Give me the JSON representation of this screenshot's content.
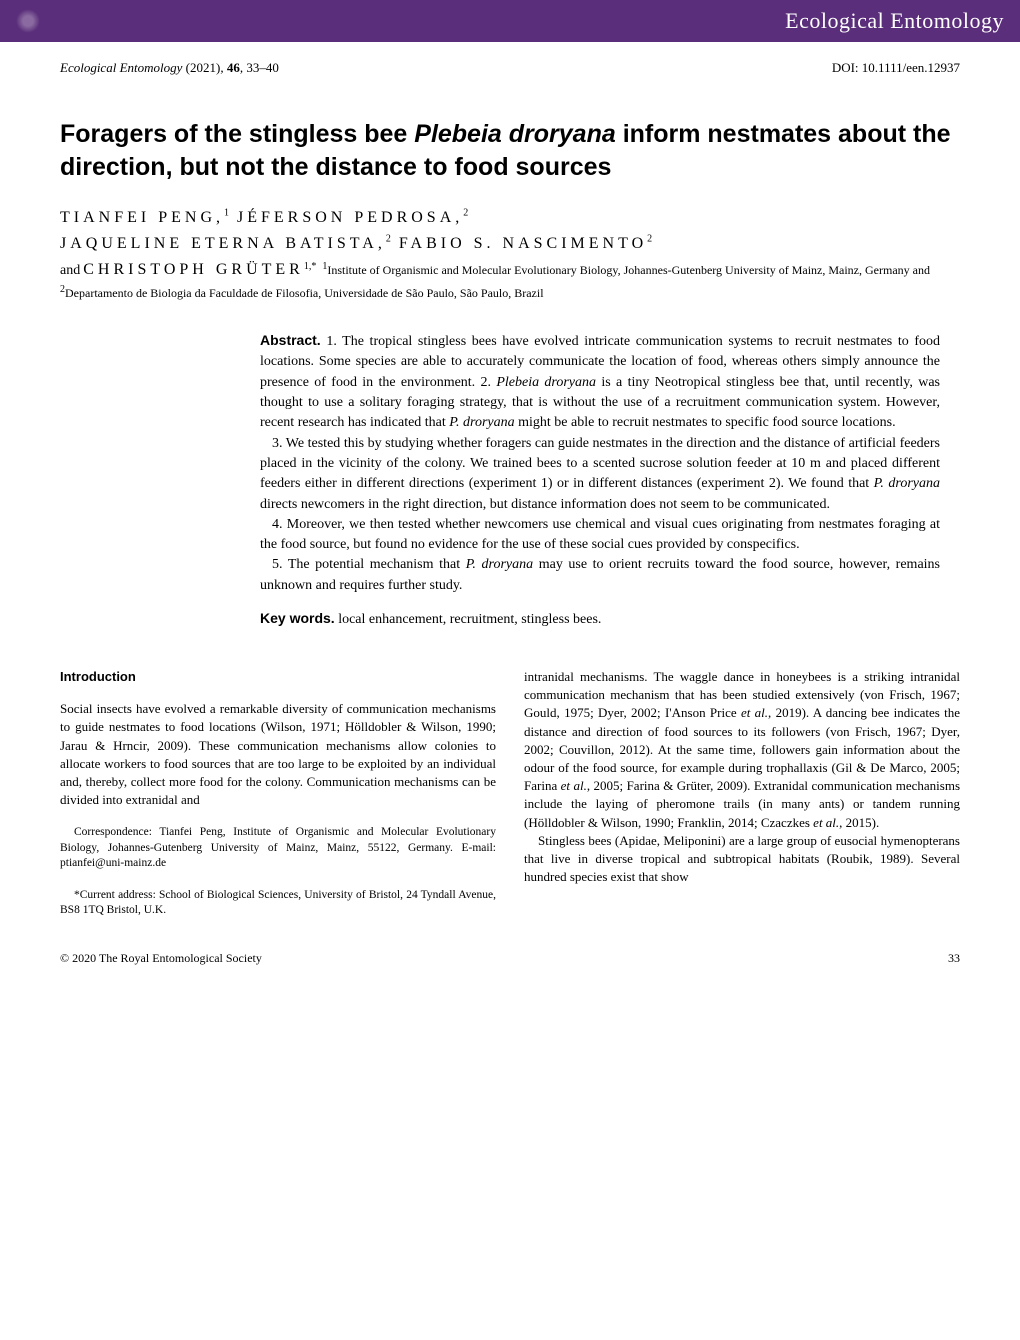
{
  "header": {
    "journal_name": "Ecological Entomology",
    "bar_color": "#5a2e7a"
  },
  "citation": {
    "journal": "Ecological Entomology",
    "year": "(2021)",
    "volume": "46",
    "pages": "33–40",
    "doi": "DOI: 10.1111/een.12937"
  },
  "title": {
    "pre": "Foragers of the stingless bee ",
    "species": "Plebeia droryana",
    "post": " inform nestmates about the direction, but not the distance to food sources"
  },
  "authors": {
    "a1": "TIANFEI PENG,",
    "a1_sup": "1",
    "a2": "JÉFERSON PEDROSA,",
    "a2_sup": "2",
    "a3": "JAQUELINE ETERNA BATISTA,",
    "a3_sup": "2",
    "a4": "FABIO S. NASCIMENTO",
    "a4_sup": "2",
    "a5_pre": "and",
    "a5": "CHRISTOPH GRÜTER",
    "a5_sup": "1,*"
  },
  "affiliations": {
    "aff1_sup": "1",
    "aff1": "Institute of Organismic and Molecular Evolutionary Biology, Johannes-Gutenberg University of Mainz, Mainz, Germany and ",
    "aff2_sup": "2",
    "aff2": "Departamento de Biologia da Faculdade de Filosofia, Universidade de São Paulo, São Paulo, Brazil"
  },
  "abstract": {
    "label": "Abstract.",
    "p1": "1. The tropical stingless bees have evolved intricate communication systems to recruit nestmates to food locations. Some species are able to accurately communicate the location of food, whereas others simply announce the presence of food in the environment.",
    "p2_pre": "2. ",
    "p2_species": "Plebeia droryana",
    "p2_mid": " is a tiny Neotropical stingless bee that, until recently, was thought to use a solitary foraging strategy, that is without the use of a recruitment communication system. However, recent research has indicated that ",
    "p2_species2": "P. droryana",
    "p2_post": " might be able to recruit nestmates to specific food source locations.",
    "p3_pre": "3. We tested this by studying whether foragers can guide nestmates in the direction and the distance of artificial feeders placed in the vicinity of the colony. We trained bees to a scented sucrose solution feeder at 10 m and placed different feeders either in different directions (experiment 1) or in different distances (experiment 2). We found that ",
    "p3_species": "P. droryana",
    "p3_post": " directs newcomers in the right direction, but distance information does not seem to be communicated.",
    "p4": "4. Moreover, we then tested whether newcomers use chemical and visual cues originating from nestmates foraging at the food source, but found no evidence for the use of these social cues provided by conspecifics.",
    "p5_pre": "5. The potential mechanism that ",
    "p5_species": "P. droryana",
    "p5_post": " may use to orient recruits toward the food source, however, remains unknown and requires further study."
  },
  "keywords": {
    "label": "Key words.",
    "text": "local enhancement, recruitment, stingless bees."
  },
  "body": {
    "intro_heading": "Introduction",
    "left_p1": "Social insects have evolved a remarkable diversity of communication mechanisms to guide nestmates to food locations (Wilson, 1971; Hölldobler & Wilson, 1990; Jarau & Hrncir, 2009). These communication mechanisms allow colonies to allocate workers to food sources that are too large to be exploited by an individual and, thereby, collect more food for the colony. Communication mechanisms can be divided into extranidal and",
    "corr": "Correspondence: Tianfei Peng, Institute of Organismic and Molecular Evolutionary Biology, Johannes-Gutenberg University of Mainz, Mainz, 55122, Germany. E-mail: ptianfei@uni-mainz.de",
    "curr_addr": "*Current address: School of Biological Sciences, University of Bristol, 24 Tyndall Avenue, BS8 1TQ Bristol, U.K.",
    "right_p1_pre": "intranidal mechanisms. The waggle dance in honeybees is a striking intranidal communication mechanism that has been studied extensively (von Frisch, 1967; Gould, 1975; Dyer, 2002; I'Anson Price ",
    "right_p1_etal1": "et al.",
    "right_p1_mid": ", 2019). A dancing bee indicates the distance and direction of food sources to its followers (von Frisch, 1967; Dyer, 2002; Couvillon, 2012). At the same time, followers gain information about the odour of the food source, for example during trophallaxis (Gil & De Marco, 2005; Farina ",
    "right_p1_etal2": "et al.",
    "right_p1_mid2": ", 2005; Farina & Grüter, 2009). Extranidal communication mechanisms include the laying of pheromone trails (in many ants) or tandem running (Hölldobler & Wilson, 1990; Franklin, 2014; Czaczkes ",
    "right_p1_etal3": "et al.",
    "right_p1_post": ", 2015).",
    "right_p2": "Stingless bees (Apidae, Meliponini) are a large group of eusocial hymenopterans that live in diverse tropical and subtropical habitats (Roubik, 1989). Several hundred species exist that show"
  },
  "footer": {
    "copyright": "© 2020 The Royal Entomological Society",
    "page": "33"
  }
}
